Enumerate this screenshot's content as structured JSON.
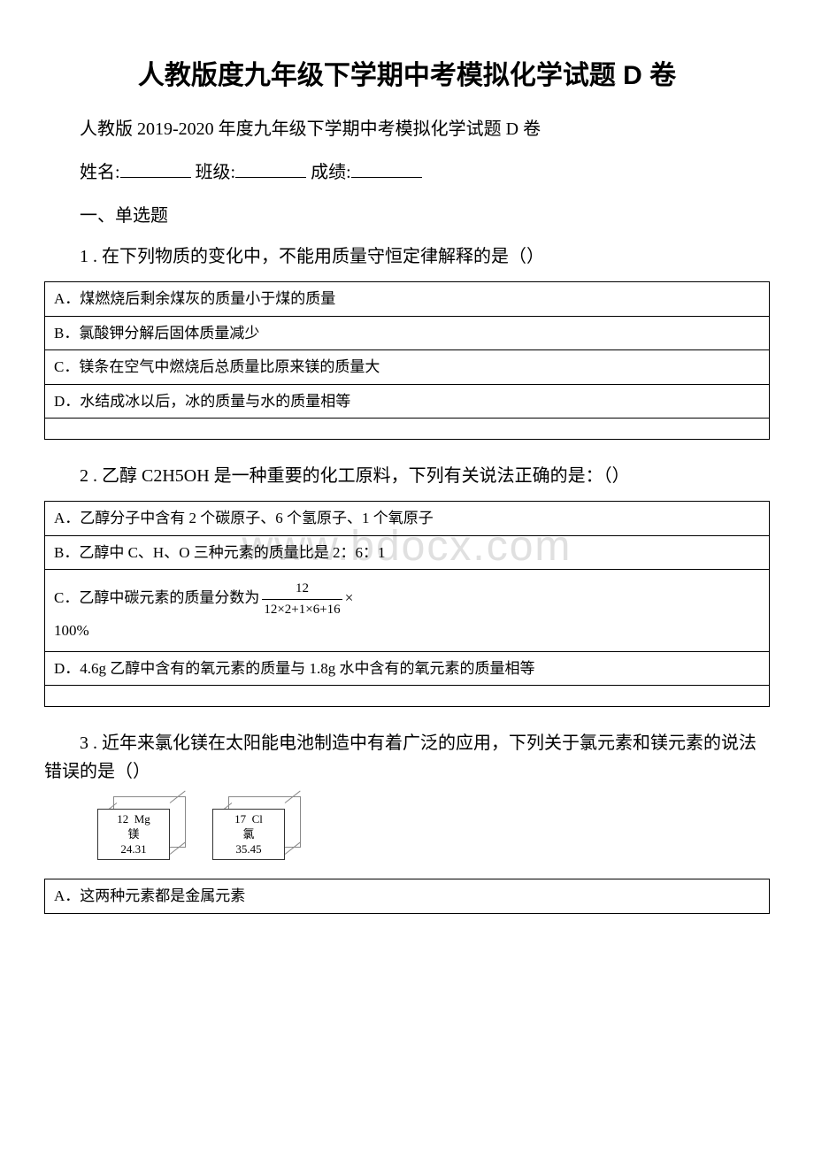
{
  "watermark": "www.bdocx.com",
  "title": "人教版度九年级下学期中考模拟化学试题 D 卷",
  "subtitle": "人教版 2019-2020 年度九年级下学期中考模拟化学试题 D 卷",
  "info": {
    "name_label": "姓名:",
    "class_label": "班级:",
    "score_label": "成绩:"
  },
  "section1": "一、单选题",
  "q1": {
    "text": "1 . 在下列物质的变化中，不能用质量守恒定律解释的是（）",
    "options": {
      "a": "A．煤燃烧后剩余煤灰的质量小于煤的质量",
      "b": "B．氯酸钾分解后固体质量减少",
      "c": "C．镁条在空气中燃烧后总质量比原来镁的质量大",
      "d": "D．水结成冰以后，冰的质量与水的质量相等"
    }
  },
  "q2": {
    "text": "2 . 乙醇 C2H5OH 是一种重要的化工原料，下列有关说法正确的是：（）",
    "options": {
      "a": "A．乙醇分子中含有 2 个碳原子、6 个氢原子、1 个氧原子",
      "b": "B．乙醇中 C、H、O 三种元素的质量比是 2：6：1",
      "c_prefix": "C．乙醇中碳元素的质量分数为",
      "c_num": "12",
      "c_den": "12×2+1×6+16",
      "c_times": "×",
      "c_suffix": "100%",
      "d": "D．4.6g 乙醇中含有的氧元素的质量与 1.8g 水中含有的氧元素的质量相等"
    }
  },
  "q3": {
    "text": "3 . 近年来氯化镁在太阳能电池制造中有着广泛的应用，下列关于氯元素和镁元素的说法错误的是（）",
    "elements": {
      "mg": {
        "number": "12",
        "symbol": "Mg",
        "name": "镁",
        "mass": "24.31"
      },
      "cl": {
        "number": "17",
        "symbol": "Cl",
        "name": "氯",
        "mass": "35.45"
      }
    },
    "options": {
      "a": "A．这两种元素都是金属元素"
    }
  }
}
